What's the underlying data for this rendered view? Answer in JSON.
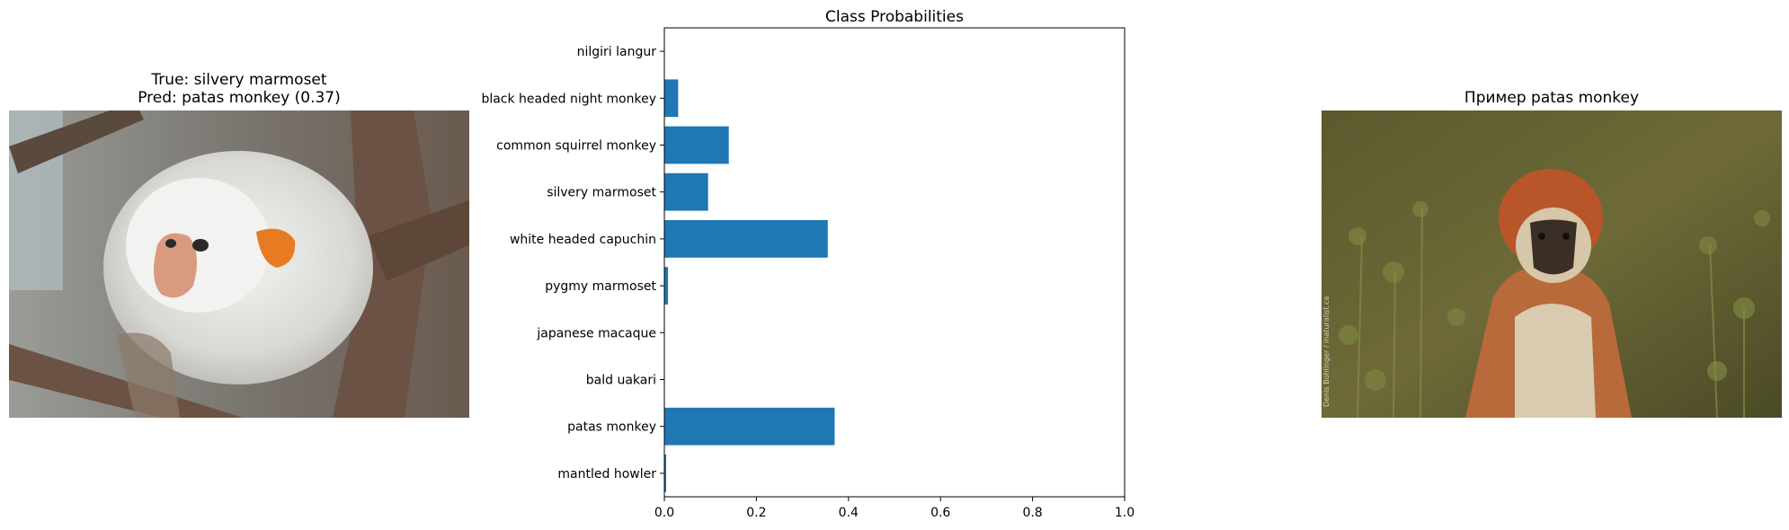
{
  "left_panel": {
    "title_line1": "True: silvery marmoset",
    "title_line2": "Pred: patas monkey (0.37)"
  },
  "right_panel": {
    "title": "Пример patas monkey",
    "watermark": "Denis Bohlinger / inaturalist.ca"
  },
  "chart_data": {
    "type": "bar",
    "orientation": "horizontal",
    "title": "Class Probabilities",
    "xlabel": "",
    "ylabel": "",
    "xlim": [
      0,
      1.0
    ],
    "xticks": [
      "0.0",
      "0.2",
      "0.4",
      "0.6",
      "0.8",
      "1.0"
    ],
    "categories": [
      "nilgiri langur",
      "black headed night monkey",
      "common squirrel monkey",
      "silvery marmoset",
      "white headed capuchin",
      "pygmy marmoset",
      "japanese macaque",
      "bald uakari",
      "patas monkey",
      "mantled howler"
    ],
    "values": [
      0.0,
      0.03,
      0.14,
      0.095,
      0.355,
      0.008,
      0.0,
      0.0,
      0.37,
      0.004
    ],
    "bar_color": "#1f77b4",
    "grid": false
  }
}
